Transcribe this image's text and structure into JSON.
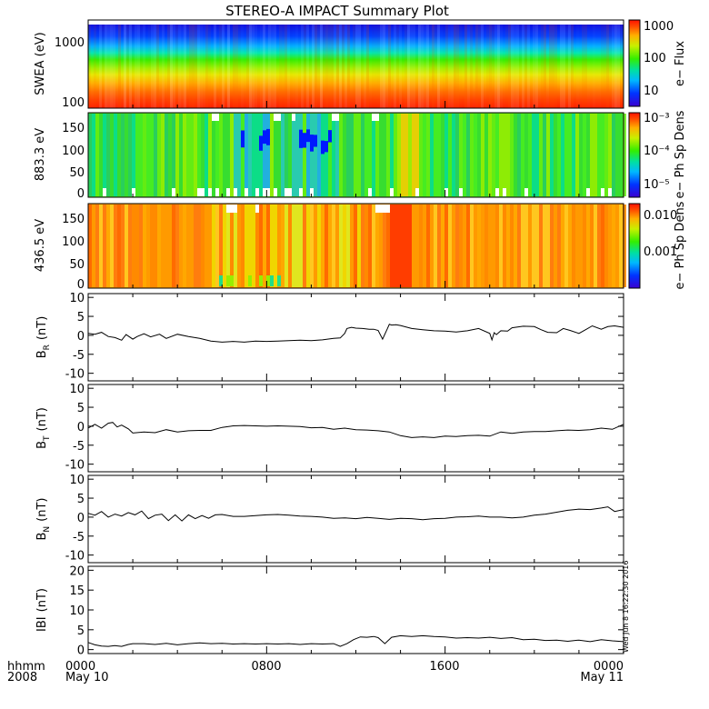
{
  "title": "STEREO-A IMPACT Summary Plot",
  "stamp": "Wed Jun  8 16:22:30 2016",
  "time_axis": {
    "corner_top": "hhmm",
    "corner_bottom": "2008",
    "ticks": [
      {
        "hours": 0,
        "label": "0000",
        "sublabel": "May 10"
      },
      {
        "hours": 8,
        "label": "0800",
        "sublabel": ""
      },
      {
        "hours": 16,
        "label": "1600",
        "sublabel": ""
      },
      {
        "hours": 24,
        "label": "0000",
        "sublabel": "May 11"
      }
    ],
    "range_hours": [
      0,
      24
    ]
  },
  "panels": {
    "swea": {
      "ylabel": "SWEA (eV)",
      "yticks": [
        "1000",
        "100"
      ],
      "ytick_values": [
        1000,
        100
      ],
      "ylim": [
        95,
        2000
      ],
      "scale": "log",
      "colorbar": {
        "label": "e− Flux",
        "ticks": [
          "1000",
          "100",
          "10"
        ],
        "tick_values": [
          1000,
          100,
          10
        ],
        "range": [
          3,
          1300
        ],
        "scale": "log"
      }
    },
    "pad883": {
      "ylabel": "883.3 eV",
      "yticks": [
        "150",
        "100",
        "50",
        "0"
      ],
      "ytick_values": [
        150,
        100,
        50,
        0
      ],
      "ylim": [
        -10,
        180
      ],
      "colorbar": {
        "label": "e− Ph Sp Dens",
        "ticks": [
          "10⁻³",
          "10⁻⁴",
          "10⁻⁵"
        ],
        "tick_values": [
          0.001,
          0.0001,
          1e-05
        ],
        "range": [
          4e-06,
          0.0012
        ],
        "scale": "log"
      }
    },
    "pad436": {
      "ylabel": "436.5 eV",
      "yticks": [
        "150",
        "100",
        "50",
        "0"
      ],
      "ytick_values": [
        150,
        100,
        50,
        0
      ],
      "ylim": [
        -10,
        180
      ],
      "colorbar": {
        "label": "e− Ph Sp Dens",
        "ticks": [
          "0.010",
          "0.001"
        ],
        "tick_values": [
          0.01,
          0.001
        ],
        "range": [
          0.0001,
          0.02
        ],
        "scale": "log"
      }
    }
  },
  "chart_data": [
    {
      "type": "line",
      "name": "BR",
      "ylabel_main": "B",
      "ylabel_sub": "R",
      "ylabel_unit": "(nT)",
      "ylim": [
        -12,
        11
      ],
      "yticks": [
        "10",
        "5",
        "0",
        "-5",
        "-10"
      ],
      "ytick_values": [
        10,
        5,
        0,
        -5,
        -10
      ],
      "x": [
        0,
        0.3,
        0.6,
        0.9,
        1.2,
        1.5,
        1.7,
        2.0,
        2.2,
        2.5,
        2.8,
        3.2,
        3.5,
        4.0,
        4.5,
        5.0,
        5.5,
        6.0,
        6.5,
        7.0,
        7.5,
        8.0,
        8.5,
        9.0,
        9.5,
        10.0,
        10.5,
        11.0,
        11.3,
        11.5,
        11.6,
        11.8,
        12.0,
        12.3,
        12.6,
        12.8,
        13.0,
        13.2,
        13.4,
        13.5,
        13.6,
        13.8,
        14.0,
        14.5,
        15.0,
        15.5,
        16.0,
        16.5,
        17.0,
        17.5,
        18.0,
        18.1,
        18.2,
        18.3,
        18.5,
        18.8,
        19.0,
        19.5,
        20.0,
        20.3,
        20.6,
        21.0,
        21.3,
        21.6,
        22.0,
        22.3,
        22.6,
        23.0,
        23.3,
        23.6,
        24.0
      ],
      "y": [
        0.5,
        0.3,
        0.8,
        -0.3,
        -0.6,
        -1.3,
        0.2,
        -1.0,
        -0.3,
        0.4,
        -0.4,
        0.3,
        -0.8,
        0.3,
        -0.3,
        -0.8,
        -1.5,
        -1.8,
        -1.6,
        -1.8,
        -1.5,
        -1.6,
        -1.5,
        -1.4,
        -1.3,
        -1.4,
        -1.2,
        -0.8,
        -0.7,
        0.5,
        1.8,
        2.1,
        1.9,
        1.8,
        1.6,
        1.6,
        1.3,
        -1.0,
        1.6,
        2.9,
        2.7,
        2.8,
        2.6,
        1.8,
        1.5,
        1.2,
        1.1,
        0.9,
        1.2,
        1.8,
        0.5,
        -1.2,
        0.7,
        0.2,
        1.2,
        1.1,
        2.0,
        2.4,
        2.3,
        1.5,
        0.8,
        0.7,
        1.8,
        1.3,
        0.5,
        1.5,
        2.5,
        1.6,
        2.3,
        2.5,
        2.1
      ]
    },
    {
      "type": "line",
      "name": "BT",
      "ylabel_main": "B",
      "ylabel_sub": "T",
      "ylabel_unit": "(nT)",
      "ylim": [
        -12,
        11
      ],
      "yticks": [
        "10",
        "5",
        "0",
        "-5",
        "-10"
      ],
      "ytick_values": [
        10,
        5,
        0,
        -5,
        -10
      ],
      "x": [
        0,
        0.3,
        0.6,
        0.9,
        1.1,
        1.3,
        1.5,
        1.8,
        2.0,
        2.5,
        3.0,
        3.5,
        4.0,
        4.5,
        5.0,
        5.5,
        6.0,
        6.5,
        7.0,
        7.5,
        8.0,
        8.5,
        9.0,
        9.5,
        10.0,
        10.5,
        11.0,
        11.5,
        12.0,
        12.5,
        13.0,
        13.5,
        14.0,
        14.5,
        15.0,
        15.5,
        16.0,
        16.5,
        17.0,
        17.5,
        18.0,
        18.5,
        19.0,
        19.5,
        20.0,
        20.5,
        21.0,
        21.5,
        22.0,
        22.5,
        23.0,
        23.5,
        24.0
      ],
      "y": [
        -0.5,
        0.5,
        -0.5,
        0.8,
        1.0,
        -0.2,
        0.3,
        -0.7,
        -1.8,
        -1.5,
        -1.7,
        -0.9,
        -1.5,
        -1.2,
        -1.1,
        -1.1,
        -0.3,
        0.1,
        0.2,
        0.1,
        0.0,
        0.1,
        0.0,
        -0.1,
        -0.4,
        -0.3,
        -0.8,
        -0.5,
        -0.9,
        -1.0,
        -1.2,
        -1.5,
        -2.5,
        -3.0,
        -2.8,
        -3.0,
        -2.6,
        -2.7,
        -2.5,
        -2.4,
        -2.6,
        -1.5,
        -1.9,
        -1.5,
        -1.4,
        -1.4,
        -1.2,
        -1.0,
        -1.1,
        -0.9,
        -0.5,
        -0.8,
        0.5
      ]
    },
    {
      "type": "line",
      "name": "BN",
      "ylabel_main": "B",
      "ylabel_sub": "N",
      "ylabel_unit": "(nT)",
      "ylim": [
        -12,
        11
      ],
      "yticks": [
        "10",
        "5",
        "0",
        "-5",
        "-10"
      ],
      "ytick_values": [
        10,
        5,
        0,
        -5,
        -10
      ],
      "x": [
        0,
        0.3,
        0.6,
        0.9,
        1.2,
        1.5,
        1.8,
        2.1,
        2.4,
        2.7,
        3.0,
        3.3,
        3.6,
        3.9,
        4.2,
        4.5,
        4.8,
        5.1,
        5.4,
        5.7,
        6.0,
        6.5,
        7.0,
        7.5,
        8.0,
        8.5,
        9.0,
        9.5,
        10.0,
        10.5,
        11.0,
        11.5,
        12.0,
        12.5,
        13.0,
        13.5,
        14.0,
        14.5,
        15.0,
        15.5,
        16.0,
        16.5,
        17.0,
        17.5,
        18.0,
        18.5,
        19.0,
        19.5,
        20.0,
        20.5,
        21.0,
        21.5,
        22.0,
        22.5,
        23.0,
        23.3,
        23.6,
        24.0
      ],
      "y": [
        1.0,
        0.5,
        1.5,
        0.0,
        0.8,
        0.3,
        1.2,
        0.6,
        1.6,
        -0.4,
        0.5,
        0.8,
        -0.9,
        0.6,
        -1.0,
        0.6,
        -0.4,
        0.4,
        -0.3,
        0.6,
        0.7,
        0.2,
        0.2,
        0.4,
        0.6,
        0.7,
        0.5,
        0.3,
        0.2,
        0.0,
        -0.3,
        -0.2,
        -0.4,
        -0.1,
        -0.3,
        -0.6,
        -0.3,
        -0.4,
        -0.7,
        -0.4,
        -0.3,
        0.0,
        0.1,
        0.3,
        0.0,
        0.0,
        -0.2,
        0.0,
        0.5,
        0.8,
        1.3,
        1.8,
        2.1,
        2.0,
        2.4,
        2.7,
        1.5,
        2.0
      ]
    },
    {
      "type": "line",
      "name": "|B|",
      "ylabel_main": "IBI",
      "ylabel_sub": "",
      "ylabel_unit": "(nT)",
      "ylim": [
        -1,
        21
      ],
      "yticks": [
        "20",
        "15",
        "10",
        "5",
        "0"
      ],
      "ytick_values": [
        20,
        15,
        10,
        5,
        0
      ],
      "x": [
        0,
        0.3,
        0.6,
        0.9,
        1.2,
        1.5,
        1.8,
        2.0,
        2.5,
        3.0,
        3.5,
        4.0,
        4.5,
        5.0,
        5.5,
        6.0,
        6.5,
        7.0,
        7.5,
        8.0,
        8.5,
        9.0,
        9.5,
        10.0,
        10.5,
        11.0,
        11.3,
        11.6,
        11.9,
        12.2,
        12.5,
        12.8,
        13.0,
        13.3,
        13.6,
        14.0,
        14.5,
        15.0,
        15.5,
        16.0,
        16.5,
        17.0,
        17.5,
        18.0,
        18.5,
        19.0,
        19.5,
        20.0,
        20.5,
        21.0,
        21.5,
        22.0,
        22.5,
        23.0,
        23.5,
        24.0
      ],
      "y": [
        1.8,
        1.2,
        0.9,
        0.8,
        1.0,
        0.8,
        1.3,
        1.5,
        1.5,
        1.3,
        1.6,
        1.2,
        1.5,
        1.7,
        1.5,
        1.6,
        1.4,
        1.5,
        1.4,
        1.5,
        1.4,
        1.5,
        1.3,
        1.5,
        1.4,
        1.5,
        0.8,
        1.5,
        2.5,
        3.2,
        3.1,
        3.3,
        3.0,
        1.5,
        3.1,
        3.5,
        3.3,
        3.5,
        3.3,
        3.2,
        2.9,
        3.0,
        2.9,
        3.1,
        2.8,
        3.0,
        2.5,
        2.6,
        2.3,
        2.4,
        2.1,
        2.4,
        2.0,
        2.5,
        2.2,
        2.0
      ]
    }
  ]
}
